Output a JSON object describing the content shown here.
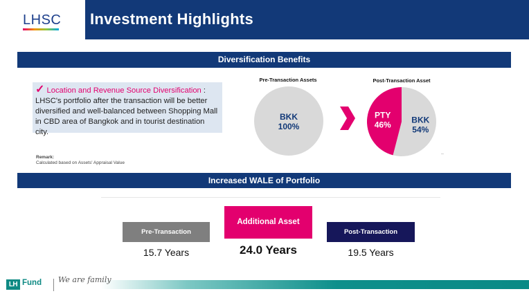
{
  "header": {
    "logo": "LHSC",
    "title": "Investment Highlights"
  },
  "diversification": {
    "section_title": "Diversification Benefits",
    "info_heading": "Location and Revenue Source Diversification",
    "info_colon": " :",
    "info_body": "LHSC's portfolio after the transaction will be better diversified and well-balanced between Shopping Mall in CBD area of Bangkok and in tourist destination city.",
    "remark_title": "Remark:",
    "remark_text": "Calculated based on Assets' Appraisal Value",
    "post_tick": ".."
  },
  "chart_data": [
    {
      "type": "pie",
      "title": "Pre-Transaction Assets",
      "slices": [
        {
          "label": "BKK",
          "value": 100,
          "value_label": "100%",
          "color": "#d9d9d9"
        }
      ]
    },
    {
      "type": "pie",
      "title": "Post-Transaction Asset",
      "slices": [
        {
          "label": "BKK",
          "value": 54,
          "value_label": "54%",
          "color": "#d9d9d9"
        },
        {
          "label": "PTY",
          "value": 46,
          "value_label": "46%",
          "color": "#e3006e"
        }
      ]
    }
  ],
  "wale": {
    "section_title": "Increased WALE of Portfolio",
    "pre_label": "Pre-Transaction",
    "pre_value": "15.7 Years",
    "add_label": "Additional Asset",
    "add_value": "24.0 Years",
    "post_label": "Post-Transaction",
    "post_value": "19.5 Years"
  },
  "footer": {
    "lh_mark": "LH",
    "fund_text": "Fund",
    "we_are_family": "We are family"
  },
  "colors": {
    "navy": "#123978",
    "magenta": "#e3006e",
    "gray_box": "#7f7f7f",
    "dark_navy": "#16175a",
    "teal": "#0f8a84"
  }
}
